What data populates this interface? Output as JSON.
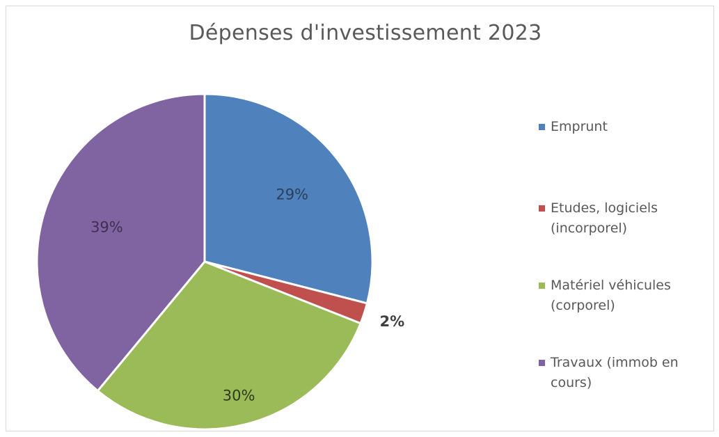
{
  "chart_data": {
    "type": "pie",
    "title": "Dépenses d'investissement 2023",
    "categories": [
      "Emprunt",
      "Etudes, logiciels\n(incorporel)",
      "Matériel véhicules\n(corporel)",
      "Travaux (immob en\ncours)"
    ],
    "values": [
      29,
      2,
      30,
      39
    ],
    "value_labels": [
      "29%",
      "2%",
      "30%",
      "39%"
    ],
    "colors": [
      "#4F81BD",
      "#C0504D",
      "#9BBB59",
      "#8064A2"
    ],
    "legend_position": "right"
  }
}
